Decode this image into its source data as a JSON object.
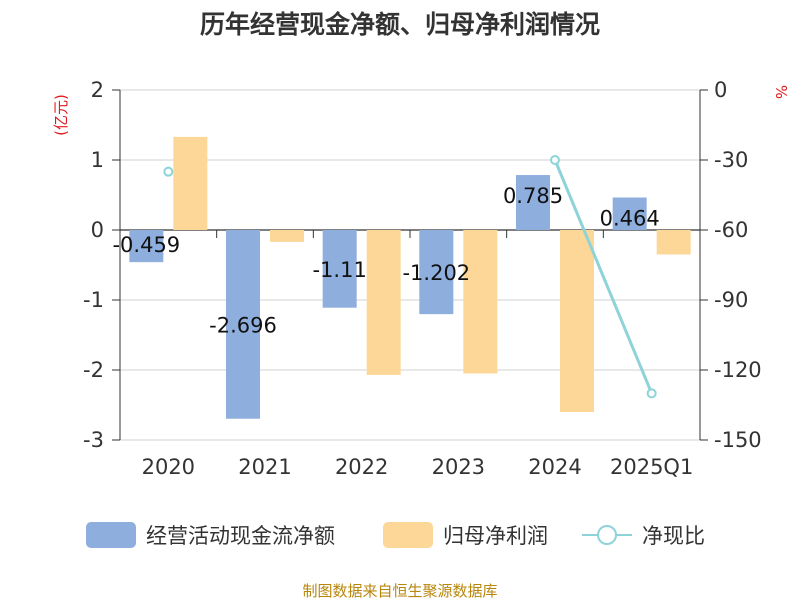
{
  "chart_data": {
    "type": "bar",
    "title": "历年经营现金净额、归母净利润情况",
    "categories": [
      "2020",
      "2021",
      "2022",
      "2023",
      "2024",
      "2025Q1"
    ],
    "ylabel": "(亿元)",
    "y2label": "%",
    "ylim": [
      -3,
      2
    ],
    "y2lim": [
      -150,
      0
    ],
    "yticks": [
      2,
      1,
      0,
      -1,
      -2,
      -3
    ],
    "y2ticks": [
      0,
      -30,
      -60,
      -90,
      -120,
      -150
    ],
    "series": [
      {
        "name": "经营活动现金流净额",
        "type": "bar",
        "axis": "left",
        "color": "#8eaede",
        "values": [
          -0.459,
          -2.696,
          -1.11,
          -1.202,
          0.785,
          0.464
        ],
        "labels": [
          "-0.459",
          "-2.696",
          "-1.11",
          "-1.202",
          "0.785",
          "0.464"
        ]
      },
      {
        "name": "归母净利润",
        "type": "bar",
        "axis": "left",
        "color": "#fdd797",
        "values": [
          1.33,
          -0.17,
          -2.07,
          -2.05,
          -2.6,
          -0.35
        ]
      },
      {
        "name": "净现比",
        "type": "line",
        "axis": "right",
        "color": "#8ed3d8",
        "values": [
          -35,
          null,
          null,
          null,
          -30,
          -130
        ]
      }
    ],
    "source": "制图数据来自恒生聚源数据库"
  }
}
